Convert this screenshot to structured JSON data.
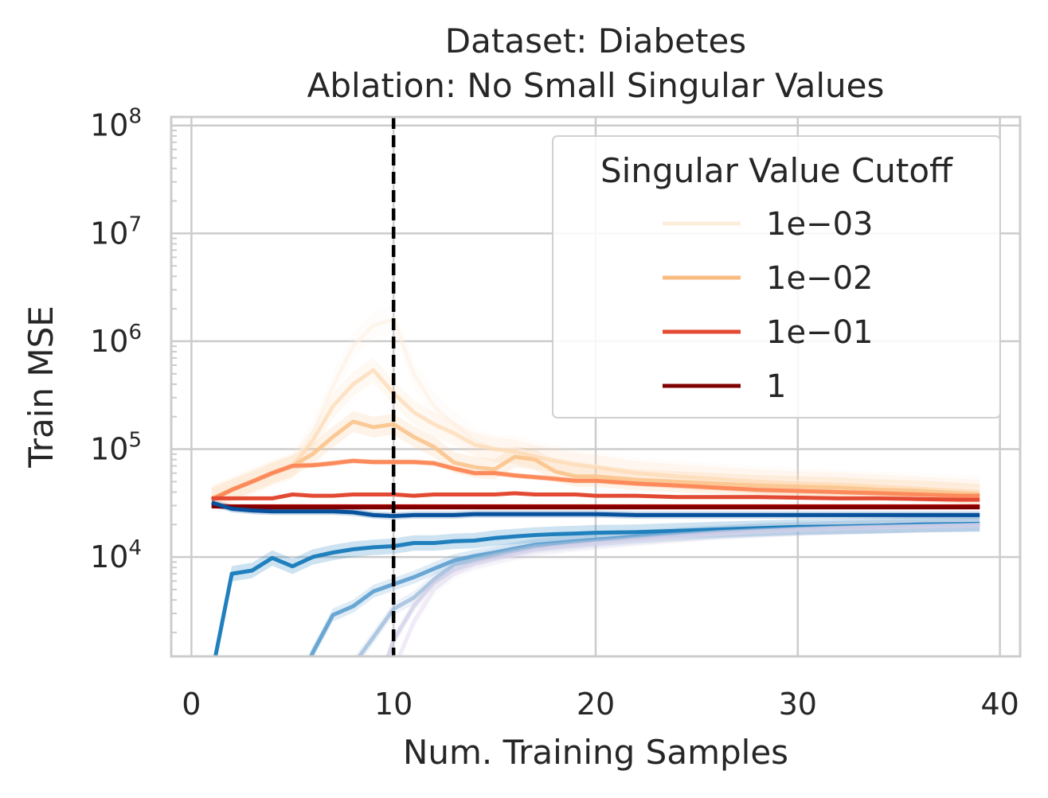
{
  "chart_data": {
    "type": "line",
    "title": "Dataset: Diabetes",
    "subtitle": "Ablation: No Small Singular Values",
    "xlabel": "Num. Training Samples",
    "ylabel": "Train MSE",
    "xlim": [
      -1,
      41
    ],
    "ylim": [
      1200,
      120000000
    ],
    "yscale": "log",
    "xticks": [
      0,
      10,
      20,
      30,
      40
    ],
    "xtick_labels": [
      "0",
      "10",
      "20",
      "30",
      "40"
    ],
    "yticks": [
      10000,
      100000,
      1000000,
      10000000,
      100000000
    ],
    "ytick_labels": [
      {
        "base": "10",
        "exp": "4"
      },
      {
        "base": "10",
        "exp": "5"
      },
      {
        "base": "10",
        "exp": "6"
      },
      {
        "base": "10",
        "exp": "7"
      },
      {
        "base": "10",
        "exp": "8"
      }
    ],
    "grid": true,
    "vline": {
      "x": 10,
      "style": "dashed",
      "color": "#000000"
    },
    "legend": {
      "title": "Singular Value Cutoff",
      "placement": "top-right",
      "entries": [
        {
          "label": "1e−03",
          "color": "#fdeedc"
        },
        {
          "label": "1e−02",
          "color": "#f8bc81"
        },
        {
          "label": "1e−01",
          "color": "#e34a33"
        },
        {
          "label": "1",
          "color": "#7f0000"
        }
      ]
    },
    "series": [
      {
        "color": "#feefe0",
        "opacity": 0.55,
        "band": 0.35,
        "x": [
          1,
          2,
          3,
          4,
          5,
          6,
          7,
          8,
          9,
          10,
          11,
          12,
          13,
          14,
          15,
          16,
          17,
          18,
          19,
          20,
          22,
          24,
          26,
          28,
          30,
          32,
          34,
          36,
          38,
          39
        ],
        "y": [
          35000,
          42000,
          50000,
          60000,
          70000,
          140000,
          380000,
          900000,
          1400000,
          1600000,
          500000,
          250000,
          170000,
          120000,
          100000,
          100000,
          90000,
          80000,
          75000,
          70000,
          62000,
          58000,
          55000,
          52000,
          50000,
          48000,
          46000,
          45000,
          43000,
          42000
        ]
      },
      {
        "color": "#fdd9b0",
        "opacity": 0.7,
        "band": 0.3,
        "x": [
          1,
          2,
          3,
          4,
          5,
          6,
          7,
          8,
          9,
          10,
          11,
          12,
          13,
          14,
          15,
          16,
          17,
          18,
          19,
          20,
          22,
          24,
          26,
          28,
          30,
          32,
          34,
          36,
          38,
          39
        ],
        "y": [
          35000,
          42000,
          50000,
          60000,
          70000,
          120000,
          250000,
          400000,
          540000,
          330000,
          220000,
          170000,
          140000,
          110000,
          100000,
          95000,
          85000,
          78000,
          72000,
          68000,
          60000,
          56000,
          53000,
          50000,
          48000,
          47000,
          45000,
          43000,
          41000,
          40000
        ]
      },
      {
        "color": "#fbc48c",
        "opacity": 0.9,
        "band": 0.25,
        "x": [
          1,
          2,
          3,
          4,
          5,
          6,
          7,
          8,
          9,
          10,
          11,
          12,
          13,
          14,
          15,
          16,
          17,
          18,
          19,
          20,
          22,
          24,
          26,
          28,
          30,
          32,
          34,
          36,
          38,
          39
        ],
        "y": [
          35000,
          42000,
          50000,
          60000,
          70000,
          90000,
          130000,
          180000,
          160000,
          170000,
          130000,
          105000,
          75000,
          68000,
          65000,
          85000,
          80000,
          62000,
          56000,
          56000,
          52000,
          50000,
          48000,
          46000,
          45000,
          44000,
          42000,
          41000,
          39000,
          38000
        ]
      },
      {
        "color": "#fc8a5a",
        "opacity": 1,
        "band": 0.06,
        "x": [
          1,
          2,
          3,
          4,
          5,
          6,
          7,
          8,
          9,
          10,
          11,
          12,
          13,
          14,
          15,
          16,
          17,
          18,
          19,
          20,
          22,
          24,
          26,
          28,
          30,
          32,
          34,
          36,
          38,
          39
        ],
        "y": [
          34000,
          42000,
          50000,
          60000,
          70000,
          71000,
          74000,
          78000,
          76000,
          76000,
          76000,
          74000,
          66000,
          60000,
          60000,
          57000,
          55000,
          53000,
          51000,
          51000,
          48000,
          46000,
          44000,
          42000,
          41000,
          40000,
          39000,
          38000,
          37000,
          37000
        ]
      },
      {
        "color": "#e34a33",
        "opacity": 1,
        "band": 0.04,
        "x": [
          1,
          2,
          3,
          4,
          5,
          6,
          7,
          8,
          9,
          10,
          11,
          12,
          13,
          14,
          15,
          16,
          17,
          18,
          19,
          20,
          22,
          24,
          26,
          28,
          30,
          32,
          34,
          36,
          38,
          39
        ],
        "y": [
          35000,
          35000,
          35000,
          35000,
          38000,
          37000,
          37000,
          38000,
          38000,
          38000,
          37000,
          38000,
          38000,
          38000,
          38000,
          39000,
          38000,
          38000,
          38000,
          37000,
          37000,
          36000,
          36000,
          36000,
          35500,
          35000,
          35000,
          34500,
          34000,
          34000
        ]
      },
      {
        "color": "#b30000",
        "opacity": 1,
        "band": 0.03,
        "x": [
          1,
          2,
          3,
          4,
          5,
          6,
          7,
          8,
          9,
          10,
          11,
          12,
          13,
          14,
          15,
          16,
          17,
          18,
          19,
          20,
          22,
          24,
          26,
          28,
          30,
          32,
          34,
          36,
          38,
          39
        ],
        "y": [
          30000,
          29500,
          29500,
          29500,
          29500,
          29500,
          29500,
          29500,
          29500,
          29500,
          29500,
          29500,
          29500,
          29500,
          29500,
          29500,
          29500,
          29500,
          29500,
          29500,
          29500,
          29500,
          29500,
          29500,
          29500,
          29500,
          29500,
          29500,
          29500,
          29500
        ]
      },
      {
        "color": "#7f0000",
        "opacity": 1,
        "band": 0.03,
        "x": [
          1,
          2,
          3,
          4,
          5,
          6,
          7,
          8,
          9,
          10,
          11,
          12,
          13,
          14,
          15,
          16,
          17,
          18,
          19,
          20,
          22,
          24,
          26,
          28,
          30,
          32,
          34,
          36,
          38,
          39
        ],
        "y": [
          29500,
          29000,
          29000,
          28800,
          28800,
          28800,
          28800,
          28800,
          28800,
          28800,
          28800,
          28800,
          28800,
          28800,
          28800,
          28800,
          28800,
          28800,
          28800,
          28800,
          28800,
          28800,
          28800,
          28800,
          28800,
          28800,
          28800,
          28800,
          28800,
          28800
        ]
      },
      {
        "color": "#08519c",
        "opacity": 1,
        "band": 0.08,
        "x": [
          1,
          2,
          3,
          4,
          5,
          6,
          7,
          8,
          9,
          10,
          11,
          12,
          13,
          14,
          15,
          16,
          17,
          18,
          19,
          20,
          22,
          24,
          26,
          28,
          30,
          32,
          34,
          36,
          38,
          39
        ],
        "y": [
          32000,
          28000,
          27000,
          26500,
          26500,
          26500,
          26500,
          26000,
          24500,
          24000,
          24500,
          24500,
          24500,
          25000,
          25000,
          25000,
          25000,
          25000,
          25000,
          25000,
          24500,
          24500,
          24500,
          24500,
          24500,
          24500,
          24500,
          24500,
          24500,
          24500
        ]
      },
      {
        "color": "#2080bd",
        "opacity": 1,
        "band": 0.18,
        "x": [
          1,
          2,
          3,
          4,
          5,
          6,
          7,
          8,
          9,
          10,
          11,
          12,
          13,
          14,
          15,
          16,
          17,
          18,
          19,
          20,
          22,
          24,
          26,
          28,
          30,
          32,
          34,
          36,
          38,
          39
        ],
        "y": [
          800,
          7000,
          7500,
          9800,
          8200,
          10000,
          11000,
          11800,
          12300,
          12600,
          13500,
          13500,
          14000,
          14200,
          15000,
          15500,
          16000,
          16300,
          16500,
          16800,
          17000,
          17500,
          18000,
          18500,
          19000,
          19200,
          19500,
          20000,
          20200,
          20300
        ]
      },
      {
        "color": "#5c9fcf",
        "opacity": 0.9,
        "band": 0.15,
        "x": [
          5.5,
          6,
          7,
          8,
          9,
          10,
          11,
          12,
          13,
          14,
          15,
          16,
          17,
          18,
          19,
          20,
          22,
          24,
          26,
          28,
          30,
          32,
          34,
          36,
          38,
          39
        ],
        "y": [
          800,
          1300,
          2900,
          3500,
          4800,
          5600,
          6500,
          7800,
          9300,
          10200,
          11000,
          12000,
          13000,
          13500,
          14000,
          14500,
          15500,
          16300,
          17000,
          17800,
          18300,
          18800,
          19200,
          19500,
          19800,
          20000
        ]
      },
      {
        "color": "#9ab9d9",
        "opacity": 0.75,
        "band": 0.15,
        "x": [
          8,
          9,
          10,
          11,
          12,
          13,
          14,
          15,
          16,
          17,
          18,
          19,
          20,
          22,
          24,
          26,
          28,
          30,
          32,
          34,
          36,
          38,
          39
        ],
        "y": [
          1000,
          1800,
          3300,
          4200,
          6200,
          8500,
          9500,
          10500,
          11500,
          12500,
          13000,
          13500,
          14000,
          15000,
          16000,
          17000,
          17600,
          18200,
          18700,
          19100,
          19400,
          19700,
          19900
        ]
      },
      {
        "color": "#c7c4e3",
        "opacity": 0.6,
        "band": 0.15,
        "x": [
          9.5,
          10,
          11,
          12,
          13,
          14,
          15,
          16,
          17,
          18,
          19,
          20,
          22,
          24,
          26,
          28,
          30,
          32,
          34,
          36,
          38,
          39
        ],
        "y": [
          900,
          1700,
          3500,
          5800,
          7600,
          8800,
          9800,
          10800,
          11800,
          12400,
          13000,
          13500,
          14600,
          15600,
          16600,
          17300,
          18000,
          18500,
          18900,
          19300,
          19600,
          19800
        ]
      },
      {
        "color": "#e4dcef",
        "opacity": 0.5,
        "band": 0.15,
        "x": [
          10,
          11,
          12,
          13,
          14,
          15,
          16,
          17,
          18,
          19,
          20,
          22,
          24,
          26,
          28,
          30,
          32,
          34,
          36,
          38,
          39
        ],
        "y": [
          900,
          2500,
          5000,
          7000,
          8500,
          9500,
          10500,
          11500,
          12200,
          12800,
          13300,
          14400,
          15400,
          16400,
          17200,
          17900,
          18400,
          18800,
          19200,
          19500,
          19700
        ]
      }
    ]
  }
}
